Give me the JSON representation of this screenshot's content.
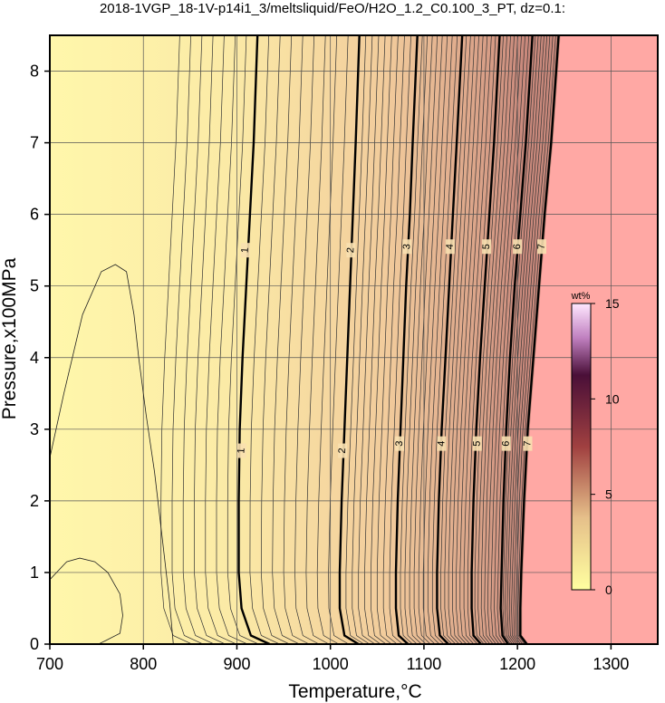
{
  "chart_data": {
    "type": "contour",
    "title": "2018-1VGP_18-1V-p14i1_3/meltsliquid/FeO/H2O_1.2_C0.100_3_PT, dz=0.1:",
    "xlabel": "Temperature,°C",
    "ylabel": "Pressure,x100MPa",
    "xlim": [
      700,
      1350
    ],
    "ylim": [
      0,
      8.5
    ],
    "x_ticks": [
      700,
      800,
      900,
      1000,
      1100,
      1200,
      1300
    ],
    "x_tick_labels": [
      "700",
      "800",
      "900",
      "1000",
      "1100",
      "1200",
      "1300"
    ],
    "y_ticks": [
      0,
      1,
      2,
      3,
      4,
      5,
      6,
      7,
      8
    ],
    "y_tick_labels": [
      "0",
      "1",
      "2",
      "3",
      "4",
      "5",
      "6",
      "7",
      "8"
    ],
    "grid": true,
    "major_contours": [
      {
        "level": 1,
        "label": "1",
        "points": [
          [
            935,
            0
          ],
          [
            915,
            0.12
          ],
          [
            905,
            0.5
          ],
          [
            902,
            1
          ],
          [
            902,
            2
          ],
          [
            903,
            3
          ],
          [
            906,
            4
          ],
          [
            910,
            5
          ],
          [
            914,
            6
          ],
          [
            918,
            7
          ],
          [
            922,
            8.5
          ]
        ],
        "label_at": [
          [
            905,
            2.7
          ],
          [
            909,
            5.5
          ]
        ]
      },
      {
        "level": 2,
        "label": "2",
        "points": [
          [
            1030,
            0
          ],
          [
            1015,
            0.12
          ],
          [
            1010,
            0.5
          ],
          [
            1010,
            1
          ],
          [
            1012,
            2
          ],
          [
            1015,
            3
          ],
          [
            1018,
            4
          ],
          [
            1021,
            5
          ],
          [
            1024,
            6
          ],
          [
            1027,
            7
          ],
          [
            1031,
            8.5
          ]
        ],
        "label_at": [
          [
            1013,
            2.7
          ],
          [
            1022,
            5.5
          ]
        ]
      },
      {
        "level": 3,
        "label": "3",
        "points": [
          [
            1083,
            0
          ],
          [
            1073,
            0.12
          ],
          [
            1070,
            0.5
          ],
          [
            1070,
            1
          ],
          [
            1072,
            2
          ],
          [
            1075,
            3
          ],
          [
            1078,
            4
          ],
          [
            1081,
            5
          ],
          [
            1085,
            6
          ],
          [
            1088,
            7
          ],
          [
            1093,
            8.5
          ]
        ],
        "label_at": [
          [
            1074,
            2.8
          ],
          [
            1082,
            5.55
          ]
        ]
      },
      {
        "level": 4,
        "label": "4",
        "points": [
          [
            1126,
            0
          ],
          [
            1117,
            0.12
          ],
          [
            1114,
            0.5
          ],
          [
            1114,
            1
          ],
          [
            1116,
            2
          ],
          [
            1119,
            3
          ],
          [
            1123,
            4
          ],
          [
            1127,
            5
          ],
          [
            1131,
            6
          ],
          [
            1135,
            7
          ],
          [
            1141,
            8.5
          ]
        ],
        "label_at": [
          [
            1119,
            2.8
          ],
          [
            1128,
            5.55
          ]
        ]
      },
      {
        "level": 5,
        "label": "5",
        "points": [
          [
            1161,
            0
          ],
          [
            1153,
            0.12
          ],
          [
            1151,
            0.5
          ],
          [
            1151,
            1
          ],
          [
            1153,
            2
          ],
          [
            1156,
            3
          ],
          [
            1160,
            4
          ],
          [
            1165,
            5
          ],
          [
            1170,
            6
          ],
          [
            1175,
            7
          ],
          [
            1181,
            8.5
          ]
        ],
        "label_at": [
          [
            1157,
            2.8
          ],
          [
            1167,
            5.55
          ]
        ]
      },
      {
        "level": 6,
        "label": "6",
        "points": [
          [
            1190,
            0
          ],
          [
            1184,
            0.12
          ],
          [
            1182,
            0.5
          ],
          [
            1183,
            1
          ],
          [
            1185,
            2
          ],
          [
            1188,
            3
          ],
          [
            1192,
            4
          ],
          [
            1197,
            5
          ],
          [
            1203,
            6
          ],
          [
            1209,
            7
          ],
          [
            1216,
            8.5
          ]
        ],
        "label_at": [
          [
            1188,
            2.8
          ],
          [
            1200,
            5.55
          ]
        ]
      },
      {
        "level": 7,
        "label": "7",
        "points": [
          [
            1210,
            0
          ],
          [
            1203,
            0.12
          ],
          [
            1203,
            0.5
          ],
          [
            1204,
            1
          ],
          [
            1207,
            2
          ],
          [
            1211,
            3
          ],
          [
            1217,
            4
          ],
          [
            1223,
            5
          ],
          [
            1229,
            6
          ],
          [
            1236,
            7
          ],
          [
            1244,
            8.5
          ]
        ],
        "label_at": [
          [
            1211,
            2.8
          ],
          [
            1226,
            5.55
          ]
        ]
      }
    ],
    "extra_contours": [
      {
        "level": 0.3,
        "points": [
          [
            700,
            2.6
          ],
          [
            715,
            3.5
          ],
          [
            735,
            4.6
          ],
          [
            755,
            5.2
          ],
          [
            770,
            5.3
          ],
          [
            782,
            5.2
          ],
          [
            790,
            4.6
          ],
          [
            795,
            4.0
          ],
          [
            803,
            3.2
          ],
          [
            812,
            2.4
          ],
          [
            820,
            1.5
          ],
          [
            828,
            0.6
          ],
          [
            832,
            0
          ]
        ]
      },
      {
        "level": 0.2,
        "points": [
          [
            700,
            0.9
          ],
          [
            718,
            1.15
          ],
          [
            732,
            1.2
          ],
          [
            748,
            1.15
          ],
          [
            762,
            1.0
          ],
          [
            775,
            0.7
          ],
          [
            778,
            0.4
          ],
          [
            775,
            0.15
          ],
          [
            760,
            0.05
          ],
          [
            752,
            0
          ]
        ]
      }
    ],
    "colorbar": {
      "label": "wt%",
      "range": [
        0,
        15
      ],
      "ticks": [
        0,
        5,
        10,
        15
      ],
      "tick_labels": [
        "0",
        "5",
        "10",
        "15"
      ],
      "colors": [
        "#ffffa0",
        "#e6c08a",
        "#a04040",
        "#4a0f38",
        "#ffe8ff"
      ]
    },
    "region_colors": {
      "low": "#fff6a8",
      "high": "#ffa8a4",
      "high_region_boundary": [
        [
          1244,
          8.5
        ],
        [
          1210,
          0
        ]
      ]
    }
  }
}
